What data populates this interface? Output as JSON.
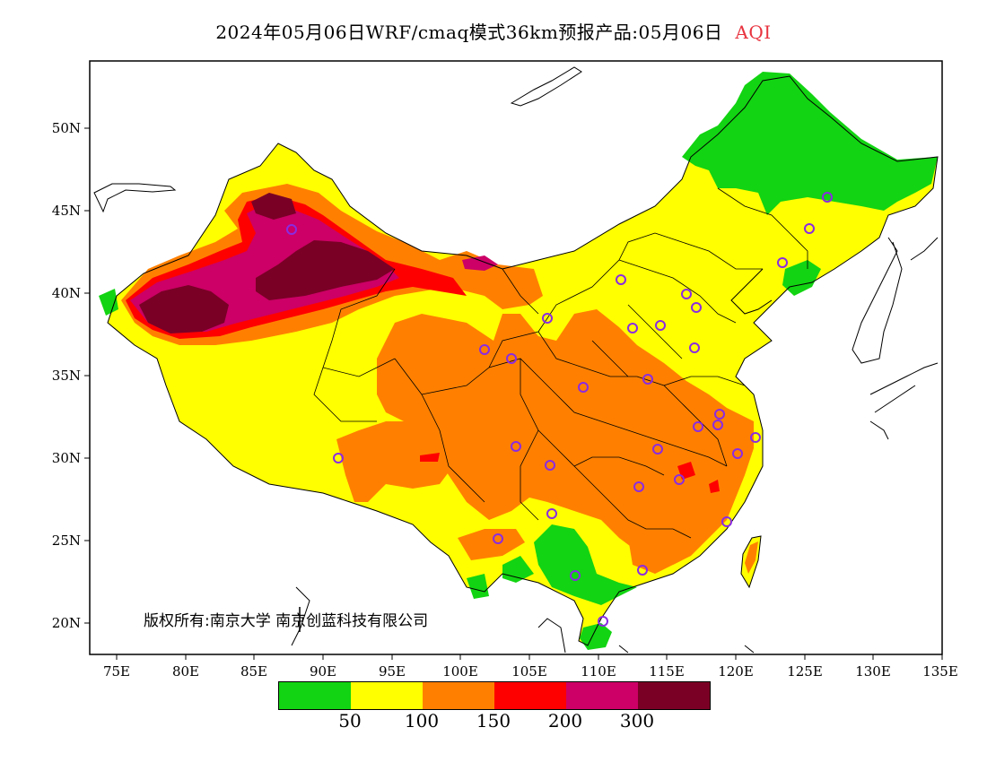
{
  "title": {
    "main": "2024年05月06日WRF/cmaq模式36km预报产品:05月06日",
    "variable": "AQI"
  },
  "axes": {
    "lat_ticks": [
      "50N",
      "45N",
      "40N",
      "35N",
      "30N",
      "25N",
      "20N"
    ],
    "lon_ticks": [
      "75E",
      "80E",
      "85E",
      "90E",
      "95E",
      "100E",
      "105E",
      "110E",
      "115E",
      "120E",
      "125E",
      "130E",
      "135E"
    ],
    "lat_range": [
      18,
      54
    ],
    "lon_range": [
      73,
      135
    ]
  },
  "legend": {
    "colors": [
      "#12d412",
      "#ffff00",
      "#ff8000",
      "#ff0000",
      "#cc0066",
      "#7a0026"
    ],
    "labels": [
      "50",
      "100",
      "150",
      "200",
      "300"
    ]
  },
  "aqi_colors": {
    "good": "#12d412",
    "moderate": "#ffff00",
    "sensitive": "#ff8000",
    "unhealthy": "#ff0000",
    "very_unhealthy": "#cc0066",
    "hazardous": "#7a0026"
  },
  "station_marker_color": "#8a2be2",
  "copyright": "版权所有:南京大学  南京创蓝科技有限公司"
}
